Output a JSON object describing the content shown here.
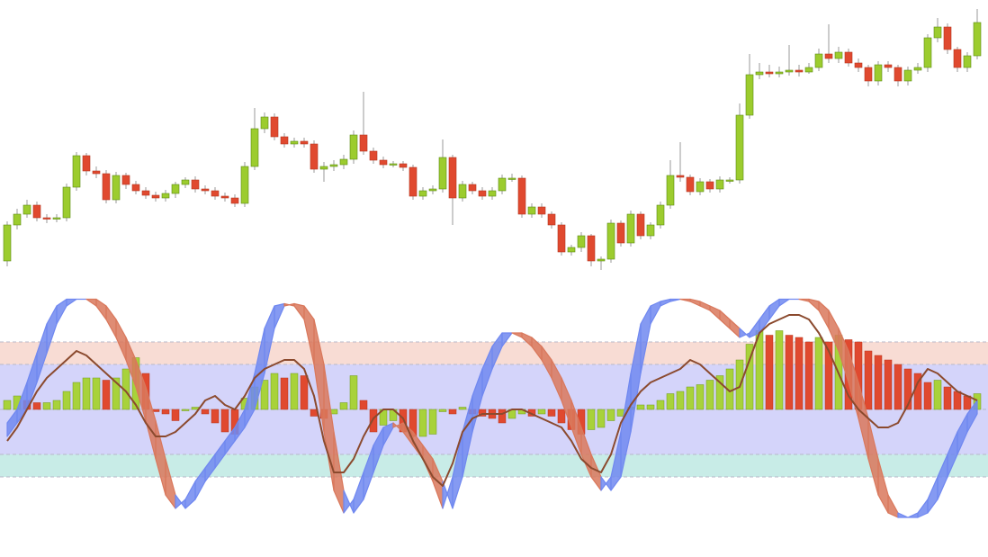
{
  "chart_data": [
    {
      "type": "candlestick",
      "ylim": [
        0,
        310
      ],
      "up_color": "#9ccc2e",
      "down_color": "#e0492f",
      "open": [
        20,
        60,
        72,
        82,
        68,
        67,
        68,
        102,
        137,
        120,
        117,
        88,
        115,
        105,
        98,
        93,
        90,
        95,
        105,
        110,
        100,
        98,
        92,
        90,
        84,
        125,
        167,
        180,
        158,
        150,
        153,
        150,
        122,
        125,
        127,
        133,
        160,
        142,
        132,
        127,
        128,
        124,
        92,
        98,
        100,
        135,
        90,
        105,
        98,
        92,
        98,
        112,
        112,
        72,
        80,
        72,
        60,
        30,
        35,
        48,
        20,
        22,
        62,
        40,
        72,
        48,
        60,
        82,
        115,
        113,
        97,
        108,
        100,
        110,
        110,
        182,
        227,
        230,
        228,
        230,
        232,
        230,
        235,
        250,
        245,
        252,
        240,
        235,
        220,
        238,
        235,
        220,
        232,
        235,
        268,
        280,
        255,
        235,
        248
      ],
      "high": [
        64,
        78,
        88,
        86,
        72,
        72,
        106,
        141,
        140,
        125,
        121,
        119,
        118,
        109,
        102,
        97,
        99,
        108,
        113,
        114,
        104,
        102,
        96,
        94,
        130,
        190,
        185,
        184,
        162,
        157,
        157,
        154,
        130,
        132,
        138,
        165,
        208,
        146,
        136,
        131,
        131,
        127,
        102,
        104,
        155,
        138,
        109,
        108,
        102,
        102,
        116,
        117,
        115,
        84,
        84,
        75,
        63,
        38,
        52,
        50,
        25,
        66,
        65,
        76,
        75,
        63,
        86,
        132,
        152,
        116,
        112,
        111,
        114,
        113,
        195,
        250,
        240,
        238,
        236,
        260,
        238,
        240,
        256,
        283,
        258,
        256,
        245,
        238,
        242,
        242,
        238,
        236,
        240,
        272,
        290,
        284,
        258,
        252,
        300
      ],
      "low": [
        14,
        55,
        68,
        64,
        62,
        63,
        64,
        98,
        115,
        112,
        84,
        84,
        100,
        94,
        89,
        86,
        86,
        90,
        101,
        96,
        94,
        88,
        86,
        80,
        80,
        121,
        162,
        154,
        146,
        146,
        146,
        118,
        108,
        120,
        122,
        128,
        138,
        128,
        123,
        124,
        120,
        88,
        88,
        94,
        96,
        60,
        86,
        94,
        88,
        88,
        94,
        108,
        68,
        68,
        68,
        56,
        26,
        26,
        30,
        14,
        10,
        18,
        36,
        36,
        44,
        44,
        56,
        78,
        108,
        93,
        93,
        96,
        96,
        106,
        106,
        178,
        222,
        224,
        224,
        226,
        225,
        228,
        231,
        240,
        240,
        236,
        230,
        214,
        215,
        230,
        214,
        215,
        228,
        230,
        263,
        250,
        230,
        230,
        244
      ],
      "close": [
        60,
        72,
        82,
        68,
        67,
        68,
        102,
        137,
        120,
        117,
        88,
        115,
        105,
        98,
        93,
        90,
        95,
        105,
        110,
        100,
        98,
        92,
        90,
        84,
        125,
        167,
        180,
        158,
        150,
        153,
        150,
        122,
        125,
        127,
        133,
        160,
        142,
        132,
        127,
        128,
        124,
        92,
        98,
        100,
        135,
        90,
        105,
        98,
        92,
        98,
        112,
        112,
        72,
        80,
        72,
        60,
        30,
        35,
        48,
        20,
        22,
        62,
        40,
        72,
        48,
        60,
        82,
        115,
        113,
        97,
        108,
        100,
        110,
        110,
        182,
        227,
        230,
        228,
        230,
        232,
        230,
        235,
        250,
        245,
        252,
        240,
        235,
        220,
        238,
        235,
        220,
        232,
        235,
        268,
        280,
        255,
        235,
        248,
        285
      ]
    },
    {
      "type": "oscillator",
      "ylim": [
        0,
        100
      ],
      "bands": [
        {
          "from": 70,
          "to": 80,
          "color": "#f8dcd4"
        },
        {
          "from": 30,
          "to": 70,
          "color": "#d4d4fa"
        },
        {
          "from": 20,
          "to": 30,
          "color": "#c8ece7"
        }
      ],
      "levels": [
        20,
        30,
        50,
        70,
        80
      ],
      "histogram": {
        "base": 50,
        "up_color": "#a8d23a",
        "down_color": "#e0492f",
        "values": [
          54,
          56,
          54,
          53,
          53,
          54,
          58,
          62,
          64,
          64,
          63,
          64,
          68,
          73,
          66,
          49,
          48,
          45,
          50,
          51,
          48,
          44,
          40,
          39,
          55,
          60,
          63,
          66,
          64,
          66,
          65,
          47,
          46,
          48,
          53,
          65,
          54,
          40,
          43,
          45,
          40,
          38,
          38,
          39,
          49,
          48,
          51,
          48,
          47,
          46,
          44,
          46,
          48,
          47,
          48,
          47,
          44,
          41,
          39,
          41,
          42,
          45,
          47,
          51,
          52,
          52,
          54,
          57,
          58,
          60,
          61,
          63,
          65,
          68,
          72,
          79,
          85,
          83,
          85,
          83,
          82,
          80,
          82,
          80,
          83,
          81,
          80,
          76,
          74,
          72,
          70,
          68,
          66,
          62,
          63,
          60,
          58,
          56,
          57
        ]
      },
      "rise_color": "#7088f0",
      "fall_color": "#d9785c",
      "fast": [
        44,
        50,
        62,
        75,
        88,
        96,
        99,
        99,
        99,
        96,
        90,
        82,
        72,
        60,
        45,
        28,
        12,
        6,
        10,
        18,
        24,
        30,
        36,
        42,
        50,
        66,
        86,
        96,
        97,
        96,
        90,
        70,
        40,
        14,
        4,
        10,
        22,
        34,
        42,
        44,
        40,
        34,
        28,
        18,
        6,
        20,
        40,
        56,
        68,
        78,
        84,
        84,
        82,
        78,
        72,
        64,
        54,
        42,
        30,
        20,
        14,
        20,
        40,
        66,
        88,
        96,
        98,
        99,
        99,
        98,
        96,
        94,
        90,
        86,
        82,
        84,
        90,
        96,
        99,
        99,
        99,
        98,
        94,
        86,
        76,
        62,
        46,
        28,
        12,
        4,
        2,
        2,
        4,
        10,
        20,
        30,
        40,
        48,
        54
      ],
      "slow": [
        38,
        44,
        50,
        62,
        75,
        88,
        96,
        99,
        99,
        99,
        96,
        90,
        82,
        72,
        60,
        45,
        28,
        12,
        6,
        10,
        18,
        24,
        30,
        36,
        42,
        50,
        66,
        86,
        96,
        97,
        96,
        90,
        70,
        40,
        14,
        4,
        10,
        22,
        34,
        42,
        44,
        40,
        34,
        28,
        18,
        6,
        20,
        40,
        56,
        68,
        78,
        84,
        84,
        82,
        78,
        72,
        64,
        54,
        42,
        30,
        20,
        14,
        20,
        40,
        66,
        88,
        96,
        98,
        99,
        99,
        98,
        96,
        94,
        90,
        86,
        82,
        84,
        90,
        96,
        99,
        99,
        99,
        98,
        94,
        86,
        76,
        62,
        46,
        28,
        12,
        4,
        2,
        2,
        4,
        10,
        20,
        30,
        40,
        48
      ],
      "signal": {
        "color": "#8b4a2e",
        "values": [
          36,
          42,
          50,
          58,
          64,
          68,
          72,
          76,
          74,
          70,
          66,
          62,
          58,
          52,
          44,
          38,
          38,
          40,
          44,
          48,
          54,
          56,
          52,
          50,
          56,
          64,
          68,
          70,
          72,
          72,
          68,
          56,
          36,
          22,
          22,
          28,
          38,
          46,
          50,
          50,
          46,
          36,
          28,
          20,
          16,
          26,
          40,
          46,
          48,
          48,
          48,
          50,
          50,
          48,
          46,
          44,
          42,
          36,
          28,
          24,
          22,
          30,
          44,
          52,
          58,
          62,
          64,
          66,
          68,
          72,
          70,
          66,
          62,
          58,
          60,
          72,
          84,
          88,
          90,
          92,
          92,
          90,
          84,
          76,
          66,
          56,
          50,
          46,
          42,
          42,
          44,
          52,
          62,
          68,
          66,
          62,
          58,
          56,
          54
        ]
      }
    }
  ]
}
